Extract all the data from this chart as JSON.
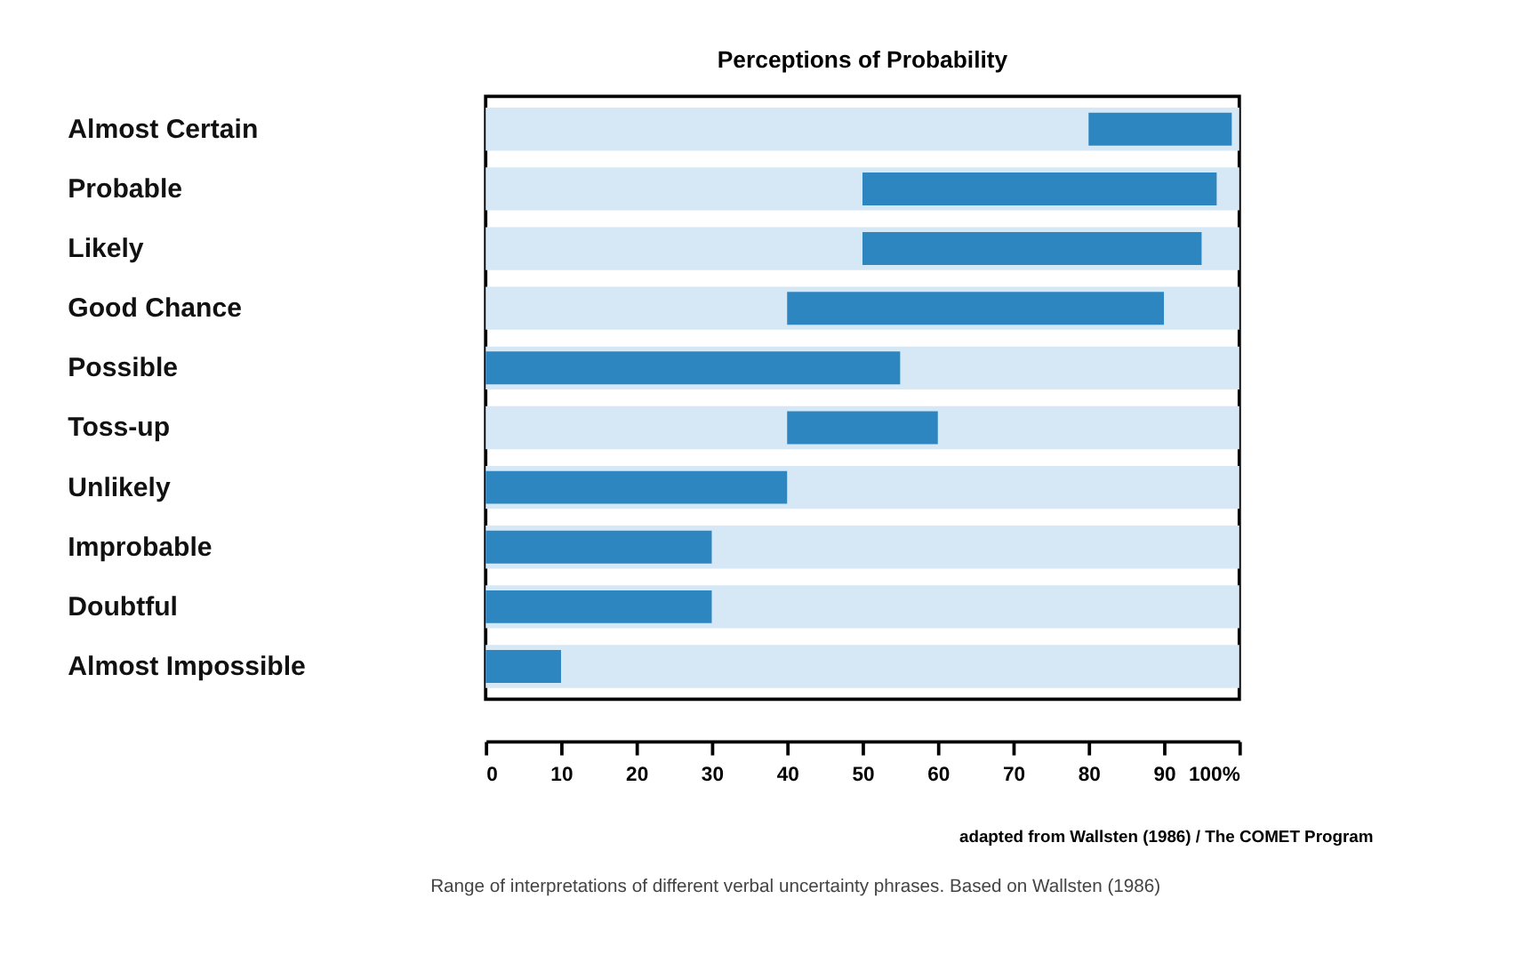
{
  "chart_data": {
    "type": "bar",
    "orientation": "horizontal",
    "title": "Perceptions of Probability",
    "categories": [
      "Almost Certain",
      "Probable",
      "Likely",
      "Good Chance",
      "Possible",
      "Toss-up",
      "Unlikely",
      "Improbable",
      "Doubtful",
      "Almost Impossible"
    ],
    "series": [
      {
        "color": "#d6e8f6",
        "base": [
          0,
          0,
          0,
          0,
          0,
          0,
          0,
          0,
          0,
          0
        ],
        "values": [
          100,
          100,
          100,
          100,
          100,
          100,
          100,
          100,
          100,
          100
        ]
      },
      {
        "color": "#2e86c1",
        "base": [
          80,
          50,
          50,
          40,
          0,
          40,
          0,
          0,
          0,
          0
        ],
        "values": [
          19,
          47,
          45,
          50,
          55,
          20,
          40,
          30,
          30,
          10
        ]
      }
    ],
    "xlim": [
      0,
      100
    ],
    "xticks": [
      0,
      10,
      20,
      30,
      40,
      50,
      60,
      70,
      80,
      90,
      {
        "value": 100,
        "label": "100%"
      }
    ],
    "grid": false,
    "annotations": [
      "adapted from Wallsten (1986) / The COMET Program",
      "Range of interpretations of different verbal uncertainty phrases. Based on Wallsten (1986)"
    ]
  }
}
